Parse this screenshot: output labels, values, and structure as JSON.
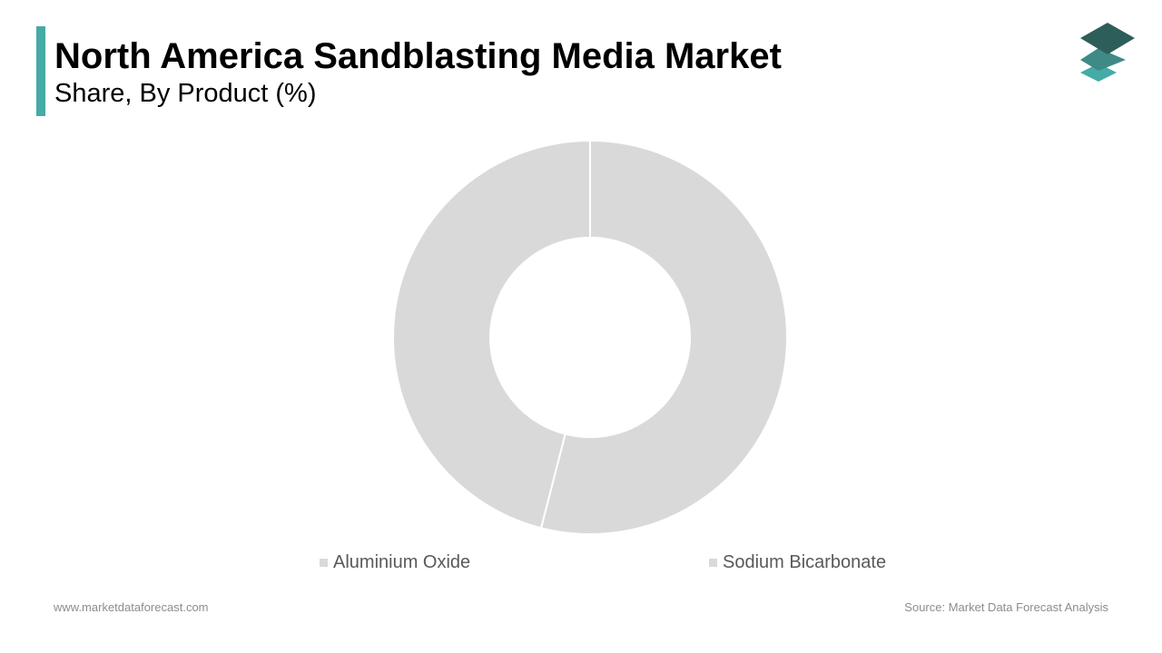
{
  "header": {
    "title": "North America Sandblasting Media Market",
    "subtitle": "Share, By Product (%)",
    "accent_color": "#45aba7"
  },
  "logo": {
    "icon": "stacked-layers-logo-icon",
    "colors": [
      "#2e5e5a",
      "#3f8a86",
      "#45aba7"
    ]
  },
  "chart_data": {
    "type": "pie",
    "style": "donut",
    "categories": [
      "Aluminium Oxide",
      "Sodium Bicarbonate"
    ],
    "values": [
      54,
      46
    ],
    "colors": [
      "#d9d9d9",
      "#d9d9d9"
    ],
    "legend_position": "bottom",
    "data_labels": false
  },
  "footer": {
    "website": "www.marketdataforecast.com",
    "source": "Source: Market Data Forecast Analysis"
  }
}
